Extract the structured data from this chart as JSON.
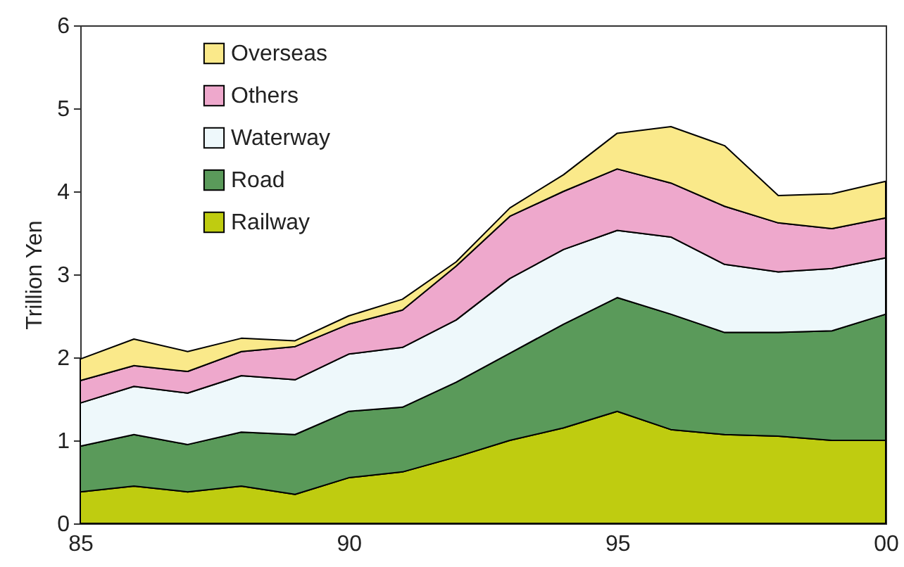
{
  "chart_data": {
    "type": "area",
    "stacked": true,
    "ylabel": "Trillion Yen",
    "x": [
      1985,
      1986,
      1987,
      1988,
      1989,
      1990,
      1991,
      1992,
      1993,
      1994,
      1995,
      1996,
      1997,
      1998,
      1999,
      2000
    ],
    "xlim": [
      1985,
      2000
    ],
    "xticks": [
      {
        "value": 1985,
        "label": "85"
      },
      {
        "value": 1986,
        "label": null
      },
      {
        "value": 1987,
        "label": null
      },
      {
        "value": 1988,
        "label": null
      },
      {
        "value": 1989,
        "label": null
      },
      {
        "value": 1990,
        "label": "90"
      },
      {
        "value": 1991,
        "label": null
      },
      {
        "value": 1992,
        "label": null
      },
      {
        "value": 1993,
        "label": null
      },
      {
        "value": 1994,
        "label": null
      },
      {
        "value": 1995,
        "label": "95"
      },
      {
        "value": 1996,
        "label": null
      },
      {
        "value": 1997,
        "label": null
      },
      {
        "value": 1998,
        "label": null
      },
      {
        "value": 1999,
        "label": null
      },
      {
        "value": 2000,
        "label": "00"
      }
    ],
    "ylim": [
      0,
      6
    ],
    "yticks": [
      0,
      1,
      2,
      3,
      4,
      5,
      6
    ],
    "grid": false,
    "legend": "top left",
    "marker": "none",
    "series": [
      {
        "name": "Railway",
        "color": "#bfcc10",
        "values": [
          0.38,
          0.45,
          0.38,
          0.45,
          0.35,
          0.55,
          0.62,
          0.8,
          1.0,
          1.15,
          1.35,
          1.13,
          1.07,
          1.05,
          1.0,
          1.0
        ]
      },
      {
        "name": "Road",
        "color": "#5a9a5a",
        "values": [
          0.55,
          0.62,
          0.57,
          0.65,
          0.72,
          0.8,
          0.78,
          0.9,
          1.05,
          1.25,
          1.37,
          1.39,
          1.23,
          1.25,
          1.32,
          1.52
        ]
      },
      {
        "name": "Waterway",
        "color": "#eef8fb",
        "values": [
          0.52,
          0.58,
          0.62,
          0.68,
          0.66,
          0.69,
          0.72,
          0.75,
          0.9,
          0.9,
          0.81,
          0.93,
          0.82,
          0.73,
          0.75,
          0.68
        ]
      },
      {
        "name": "Others",
        "color": "#eea8cc",
        "values": [
          0.27,
          0.25,
          0.26,
          0.29,
          0.4,
          0.36,
          0.45,
          0.65,
          0.75,
          0.7,
          0.74,
          0.65,
          0.7,
          0.59,
          0.48,
          0.48
        ]
      },
      {
        "name": "Overseas",
        "color": "#fae98a",
        "values": [
          0.26,
          0.32,
          0.24,
          0.16,
          0.07,
          0.1,
          0.13,
          0.05,
          0.1,
          0.2,
          0.43,
          0.68,
          0.73,
          0.33,
          0.42,
          0.44
        ]
      }
    ]
  }
}
